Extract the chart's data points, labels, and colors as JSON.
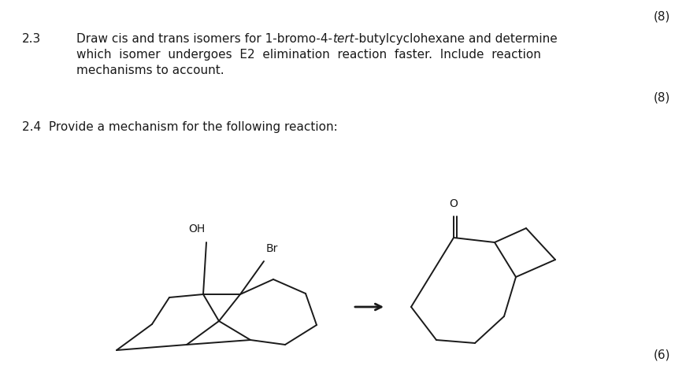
{
  "bg_color": "#ffffff",
  "text_color": "#1a1a1a",
  "score1": "(8)",
  "score2": "(8)",
  "score3": "(6)",
  "q23_num": "2.3",
  "q23_l1a": "Draw cis and trans isomers for 1-bromo-4-",
  "q23_tert": "tert",
  "q23_l1b": "-butylcyclohexane and determine",
  "q23_l2": "which  isomer  undergoes  E2  elimination  reaction  faster.  Include  reaction",
  "q23_l3": "mechanisms to account.",
  "q24": "2.4  Provide a mechanism for the following reaction:",
  "oh_label": "OH",
  "br_label": "Br",
  "o_label": "O",
  "fontsize": 11.0,
  "lw": 1.4
}
